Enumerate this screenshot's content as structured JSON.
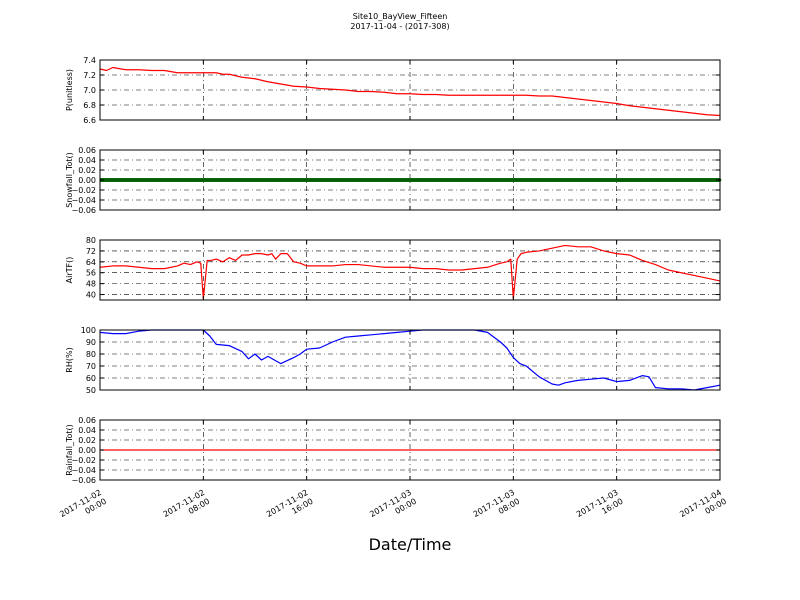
{
  "title": "Site10_BayView_Fifteen",
  "subtitle": "2017-11-04 - (2017-308)",
  "xlabel": "Date/Time",
  "x_tick_labels": [
    [
      "2017-11-02",
      "00:00"
    ],
    [
      "2017-11-02",
      "08:00"
    ],
    [
      "2017-11-02",
      "16:00"
    ],
    [
      "2017-11-03",
      "00:00"
    ],
    [
      "2017-11-03",
      "08:00"
    ],
    [
      "2017-11-03",
      "16:00"
    ],
    [
      "2017-11-04",
      "00:00"
    ]
  ],
  "chart_data": [
    {
      "type": "line",
      "ylabel": "P(unitless)",
      "ylim": [
        6.6,
        7.4
      ],
      "yticks": [
        "7.4",
        "7.2",
        "7.0",
        "6.8",
        "6.6"
      ],
      "ytick_values": [
        7.4,
        7.2,
        7.0,
        6.8,
        6.6
      ],
      "xlim": [
        0,
        48
      ],
      "grid": true,
      "series": [
        {
          "color": "#ff0000",
          "marker": "none",
          "x": [
            0,
            0.5,
            1,
            2,
            3,
            4,
            5,
            6,
            7,
            8,
            9,
            9.5,
            10,
            11,
            12,
            13,
            14,
            15,
            16,
            17,
            18,
            19,
            20,
            21,
            22,
            23,
            24,
            25,
            26,
            27,
            28,
            29,
            30,
            31,
            32,
            33,
            34,
            35,
            36,
            37,
            38,
            39,
            40,
            41,
            42,
            43,
            44,
            45,
            46,
            47,
            48
          ],
          "values": [
            7.28,
            7.26,
            7.3,
            7.27,
            7.27,
            7.26,
            7.26,
            7.23,
            7.23,
            7.23,
            7.23,
            7.21,
            7.21,
            7.17,
            7.15,
            7.11,
            7.08,
            7.05,
            7.04,
            7.02,
            7.01,
            7.0,
            6.98,
            6.98,
            6.97,
            6.95,
            6.95,
            6.94,
            6.94,
            6.93,
            6.93,
            6.93,
            6.93,
            6.93,
            6.93,
            6.93,
            6.92,
            6.92,
            6.9,
            6.88,
            6.86,
            6.84,
            6.82,
            6.79,
            6.77,
            6.75,
            6.73,
            6.71,
            6.69,
            6.67,
            6.66
          ]
        }
      ]
    },
    {
      "type": "line",
      "ylabel": "Snowfall_Tot()",
      "ylim": [
        -0.06,
        0.06
      ],
      "yticks": [
        "0.06",
        "0.04",
        "0.02",
        "0.00",
        "−0.02",
        "−0.04",
        "−0.06"
      ],
      "ytick_values": [
        0.06,
        0.04,
        0.02,
        0.0,
        -0.02,
        -0.04,
        -0.06
      ],
      "xlim": [
        0,
        48
      ],
      "grid": true,
      "series": [
        {
          "color": "#008000",
          "marker": "dot",
          "x": [
            0,
            48
          ],
          "values": [
            0.0,
            0.0
          ]
        }
      ]
    },
    {
      "type": "line",
      "ylabel": "AirTF()",
      "ylim": [
        36,
        80
      ],
      "yticks": [
        "80",
        "72",
        "64",
        "56",
        "48",
        "40"
      ],
      "ytick_values": [
        80,
        72,
        64,
        56,
        48,
        40
      ],
      "xlim": [
        0,
        48
      ],
      "grid": true,
      "series": [
        {
          "color": "#ff0000",
          "marker": "none",
          "x": [
            0,
            1,
            2,
            3,
            4,
            5,
            6,
            6.5,
            7,
            7.5,
            7.8,
            8,
            8.3,
            8.6,
            9,
            9.5,
            10,
            10.5,
            11,
            11.5,
            12,
            12.5,
            13,
            13.3,
            13.6,
            14,
            14.5,
            15,
            15.5,
            16,
            17,
            18,
            19,
            20,
            21,
            22,
            23,
            24,
            25,
            26,
            27,
            28,
            29,
            30,
            31,
            31.5,
            31.8,
            32,
            32.3,
            32.6,
            33,
            34,
            35,
            36,
            37,
            37.5,
            38,
            39,
            40,
            41,
            42,
            43,
            44,
            45,
            46,
            47,
            48
          ],
          "values": [
            60,
            61,
            61,
            60,
            59,
            59,
            61,
            63,
            62,
            64,
            63,
            37,
            65,
            65,
            66,
            64,
            67,
            65,
            69,
            69,
            70,
            70,
            69,
            70,
            66,
            70,
            70,
            64,
            63,
            61,
            61,
            61,
            62,
            62,
            61,
            60,
            60,
            60,
            59,
            59,
            58,
            58,
            59,
            60,
            63,
            64,
            66,
            37,
            66,
            70,
            71,
            72,
            74,
            76,
            75,
            75,
            75,
            72,
            70,
            69,
            65,
            62,
            58,
            56,
            54,
            52,
            50
          ]
        }
      ]
    },
    {
      "type": "line",
      "ylabel": "RH(%)",
      "ylim": [
        50,
        100
      ],
      "yticks": [
        "100",
        "90",
        "80",
        "70",
        "60",
        "50"
      ],
      "ytick_values": [
        100,
        90,
        80,
        70,
        60,
        50
      ],
      "xlim": [
        0,
        48
      ],
      "grid": true,
      "series": [
        {
          "color": "#0000ff",
          "marker": "none",
          "x": [
            0,
            1,
            2,
            3,
            4,
            5,
            6,
            7,
            8,
            8.5,
            9,
            10,
            11,
            11.5,
            12,
            12.5,
            13,
            14,
            15,
            15.5,
            16,
            17,
            18,
            19,
            20,
            21,
            22,
            23,
            24,
            25,
            26,
            27,
            28,
            29,
            30,
            31,
            31.5,
            32,
            32.5,
            33,
            34,
            35,
            35.5,
            36,
            37,
            38,
            39,
            40,
            41,
            42,
            42.5,
            43,
            44,
            45,
            46,
            47,
            48
          ],
          "values": [
            98,
            97,
            97,
            99,
            100,
            100,
            100,
            100,
            100,
            95,
            88,
            87,
            82,
            76,
            80,
            75,
            78,
            72,
            77,
            80,
            84,
            85,
            90,
            94,
            95,
            96,
            97,
            98,
            99,
            100,
            100,
            100,
            100,
            100,
            98,
            90,
            85,
            77,
            72,
            70,
            61,
            55,
            54,
            56,
            58,
            59,
            60,
            57,
            58,
            62,
            61,
            52,
            51,
            51,
            50,
            52,
            54
          ]
        }
      ]
    },
    {
      "type": "line",
      "ylabel": "Rainfall_Tot()",
      "ylim": [
        -0.06,
        0.06
      ],
      "yticks": [
        "0.06",
        "0.04",
        "0.02",
        "0.00",
        "−0.02",
        "−0.04",
        "−0.06"
      ],
      "ytick_values": [
        0.06,
        0.04,
        0.02,
        0.0,
        -0.02,
        -0.04,
        -0.06
      ],
      "xlim": [
        0,
        48
      ],
      "grid": true,
      "series": [
        {
          "color": "#ff0000",
          "marker": "none",
          "x": [
            0,
            48
          ],
          "values": [
            0.0,
            0.0
          ]
        }
      ]
    }
  ]
}
